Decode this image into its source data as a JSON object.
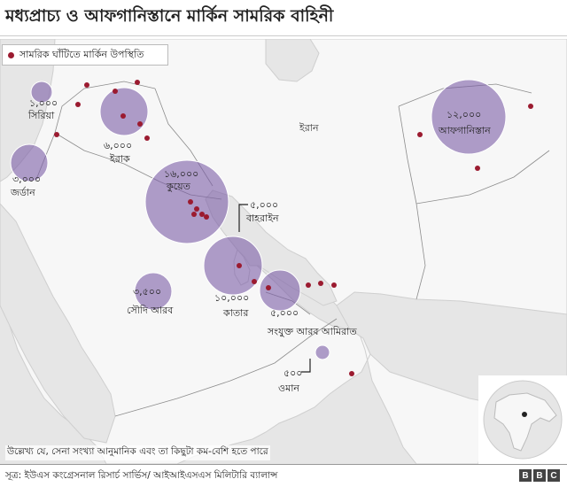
{
  "title": "মধ্যপ্রাচ্য ও আফগানিস্তানে মার্কিন সামরিক বাহিনী",
  "legend": {
    "label": "সামরিক ঘাঁটিতে মার্কিন উপস্থিতি"
  },
  "note": "উল্লেখ্য যে, সেনা সংখ্যা আনুমানিক এবং তা কিছুটা কম-বেশি হতে পারে",
  "source": "সূত্র: ইউএস কংগ্রেসনাল রিসার্চ সার্ভিস/ আইআইএসএস মিলিটারি ব্যালান্স",
  "brand": [
    "B",
    "B",
    "C"
  ],
  "region_labels": {
    "iran": "ইরান"
  },
  "colors": {
    "bubble": "#7b5ea7",
    "base_dot": "#9b1b30",
    "land": "#f7f7f7",
    "sea": "#e6e6e6"
  },
  "countries": [
    {
      "id": "syria",
      "name": "সিরিয়া",
      "troops": 1000,
      "value_label": "১,০০০"
    },
    {
      "id": "iraq",
      "name": "ইরাক",
      "troops": 6000,
      "value_label": "৬,০০০"
    },
    {
      "id": "jordan",
      "name": "জর্ডান",
      "troops": 3000,
      "value_label": "৩,০০০"
    },
    {
      "id": "kuwait",
      "name": "কুয়েত",
      "troops": 16000,
      "value_label": "১৬,০০০"
    },
    {
      "id": "bahrain",
      "name": "বাহরাইন",
      "troops": 5000,
      "value_label": "৫,০০০"
    },
    {
      "id": "qatar",
      "name": "কাতার",
      "troops": 10000,
      "value_label": "১০,০০০"
    },
    {
      "id": "uae",
      "name": "সংযুক্ত আরব আমিরাত",
      "troops": 5000,
      "value_label": "৫,০০০"
    },
    {
      "id": "saudi",
      "name": "সৌদি আরব",
      "troops": 3500,
      "value_label": "৩,৫০০"
    },
    {
      "id": "oman",
      "name": "ওমান",
      "troops": 500,
      "value_label": "৫০০"
    },
    {
      "id": "afghanistan",
      "name": "আফগানিস্তান",
      "troops": 12000,
      "value_label": "১২,০০০"
    }
  ]
}
